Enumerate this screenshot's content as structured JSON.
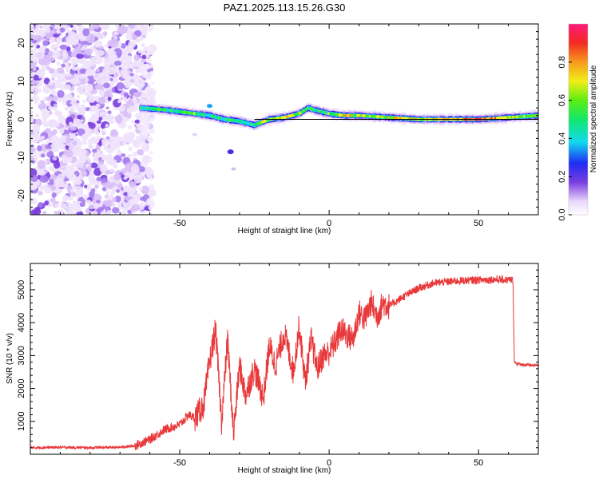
{
  "title": "PAZ1.2025.113.15.26.G30",
  "chart_data": [
    {
      "type": "heatmap",
      "xlabel": "Height of straight line (km)",
      "ylabel": "Frequency (Hz)",
      "xlim": [
        -100,
        70
      ],
      "ylim": [
        -25,
        25
      ],
      "xticks": [
        -50,
        0,
        50
      ],
      "yticks": [
        -20,
        -10,
        0,
        10,
        20
      ],
      "colorbar": {
        "label": "Normalized spectral amplitude",
        "range": [
          0,
          1
        ],
        "ticks": [
          "0.0",
          "0.2",
          "0.4",
          "0.6",
          "0.8"
        ]
      },
      "noise_region_x": [
        -100,
        -55
      ],
      "ridge": {
        "x": [
          -63,
          -55,
          -45,
          -40,
          -35,
          -30,
          -25,
          -20,
          -15,
          -10,
          -7,
          -5,
          0,
          5,
          10,
          20,
          30,
          40,
          50,
          60,
          70
        ],
        "y": [
          3,
          2.5,
          1.5,
          1,
          0,
          -0.5,
          -1.5,
          0,
          0.5,
          1.5,
          3,
          2.5,
          1.5,
          1,
          1,
          0.5,
          0,
          0,
          0,
          0.5,
          1
        ],
        "amplitude": [
          0.5,
          0.5,
          0.6,
          0.5,
          0.55,
          0.55,
          0.55,
          0.7,
          0.75,
          0.65,
          0.55,
          0.55,
          0.6,
          0.7,
          0.7,
          0.7,
          0.75,
          0.8,
          0.95,
          0.7,
          0.6
        ]
      },
      "ridge_line_x": [
        -25,
        70
      ],
      "ridge_line_y": 0
    },
    {
      "type": "line",
      "xlabel": "Height of straight line (km)",
      "ylabel": "SNR (10 * v/v)",
      "xlim": [
        -100,
        70
      ],
      "ylim": [
        0,
        5800
      ],
      "xticks": [
        -50,
        0,
        50
      ],
      "yticks": [
        1000,
        2000,
        3000,
        4000,
        5000
      ],
      "color": "#e8383a",
      "series": [
        {
          "x": [
            -100,
            -90,
            -80,
            -70,
            -65,
            -60,
            -55,
            -50,
            -47,
            -45,
            -42,
            -40,
            -38,
            -36,
            -34,
            -32,
            -30,
            -28,
            -25,
            -22,
            -20,
            -18,
            -15,
            -12,
            -10,
            -8,
            -6,
            -4,
            -2,
            0,
            2,
            4,
            6,
            8,
            10,
            12,
            14,
            16,
            18,
            20,
            25,
            30,
            35,
            40,
            45,
            50,
            55,
            60,
            61.5,
            62,
            63,
            65,
            70
          ],
          "y": [
            200,
            210,
            200,
            210,
            260,
            450,
            750,
            900,
            1200,
            1100,
            1500,
            2800,
            3800,
            1000,
            3500,
            600,
            2700,
            1800,
            2600,
            1700,
            3300,
            2700,
            3700,
            2500,
            3900,
            2200,
            3500,
            2600,
            3000,
            3100,
            3400,
            3800,
            3600,
            3500,
            4300,
            4100,
            4600,
            4200,
            4600,
            4500,
            4800,
            5050,
            5200,
            5250,
            5280,
            5300,
            5310,
            5300,
            5300,
            2800,
            2750,
            2720,
            2700
          ]
        }
      ]
    }
  ],
  "colors": {
    "line": "#e8383a",
    "noise": "#7a3de0",
    "background": "#ffffff"
  }
}
